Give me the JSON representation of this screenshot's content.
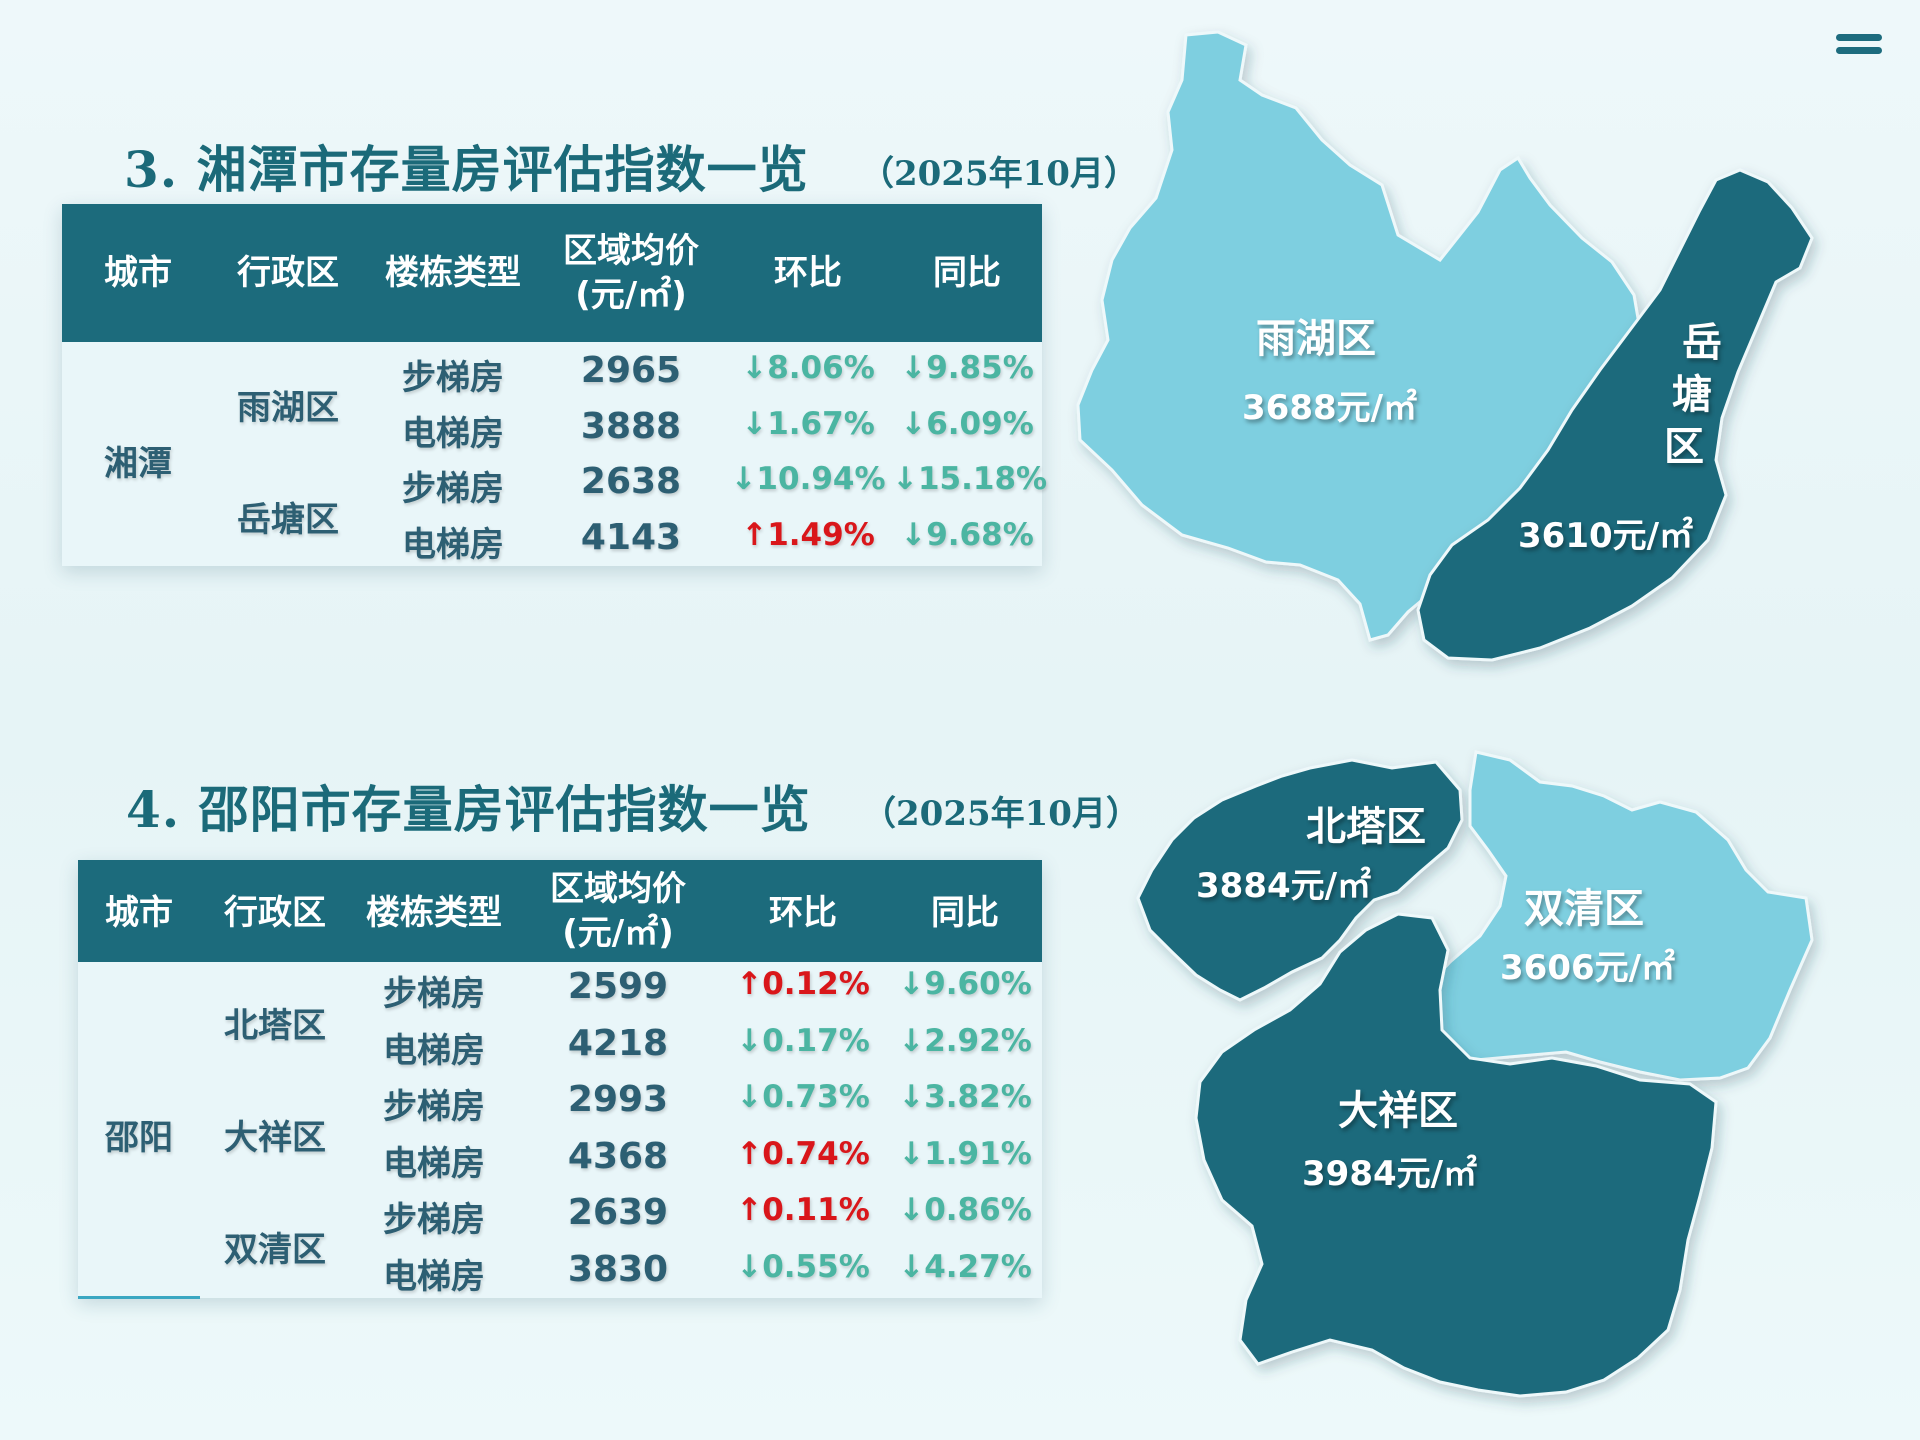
{
  "section3": {
    "title": "3. 湘潭市存量房评估指数一览",
    "date": "（2025年10月）",
    "headers": [
      "城市",
      "行政区",
      "楼栋类型",
      "区域均价",
      "(元/㎡)",
      "环比",
      "同比"
    ],
    "city": "湘潭",
    "districts": [
      "雨湖区",
      "岳塘区"
    ],
    "rows": [
      {
        "type": "步梯房",
        "price": "2965",
        "mom": "↓8.06%",
        "yoy": "↓9.85%",
        "mom_dir": "down",
        "yoy_dir": "down"
      },
      {
        "type": "电梯房",
        "price": "3888",
        "mom": "↓1.67%",
        "yoy": "↓6.09%",
        "mom_dir": "down",
        "yoy_dir": "down"
      },
      {
        "type": "步梯房",
        "price": "2638",
        "mom": "↓10.94%",
        "yoy": "↓15.18%",
        "mom_dir": "down",
        "yoy_dir": "down"
      },
      {
        "type": "电梯房",
        "price": "4143",
        "mom": "↑1.49%",
        "yoy": "↓9.68%",
        "mom_dir": "up",
        "yoy_dir": "down"
      }
    ],
    "map": {
      "yuhu_name": "雨湖区",
      "yuhu_price": "3688元/㎡",
      "yuetang_name": [
        "岳",
        "塘",
        "区"
      ],
      "yuetang_price": "3610元/㎡"
    }
  },
  "section4": {
    "title": "4. 邵阳市存量房评估指数一览",
    "date": "（2025年10月）",
    "headers": [
      "城市",
      "行政区",
      "楼栋类型",
      "区域均价",
      "(元/㎡)",
      "环比",
      "同比"
    ],
    "city": "邵阳",
    "districts": [
      "北塔区",
      "大祥区",
      "双清区"
    ],
    "rows": [
      {
        "type": "步梯房",
        "price": "2599",
        "mom": "↑0.12%",
        "yoy": "↓9.60%",
        "mom_dir": "up",
        "yoy_dir": "down"
      },
      {
        "type": "电梯房",
        "price": "4218",
        "mom": "↓0.17%",
        "yoy": "↓2.92%",
        "mom_dir": "down",
        "yoy_dir": "down"
      },
      {
        "type": "步梯房",
        "price": "2993",
        "mom": "↓0.73%",
        "yoy": "↓3.82%",
        "mom_dir": "down",
        "yoy_dir": "down"
      },
      {
        "type": "电梯房",
        "price": "4368",
        "mom": "↑0.74%",
        "yoy": "↓1.91%",
        "mom_dir": "up",
        "yoy_dir": "down"
      },
      {
        "type": "步梯房",
        "price": "2639",
        "mom": "↑0.11%",
        "yoy": "↓0.86%",
        "mom_dir": "up",
        "yoy_dir": "down"
      },
      {
        "type": "电梯房",
        "price": "3830",
        "mom": "↓0.55%",
        "yoy": "↓4.27%",
        "mom_dir": "down",
        "yoy_dir": "down"
      }
    ],
    "map": {
      "beita_name": "北塔区",
      "beita_price": "3884元/㎡",
      "shuangqing_name": "双清区",
      "shuangqing_price": "3606元/㎡",
      "daxiang_name": "大祥区",
      "daxiang_price": "3984元/㎡"
    }
  },
  "colors": {
    "header": "#1c6b7c",
    "down": "#4bb5a2",
    "up": "#d9161a",
    "map_dark": "#1a6b7c",
    "map_light": "#7ecfe0"
  },
  "icons": {
    "menu": "menu-icon"
  }
}
